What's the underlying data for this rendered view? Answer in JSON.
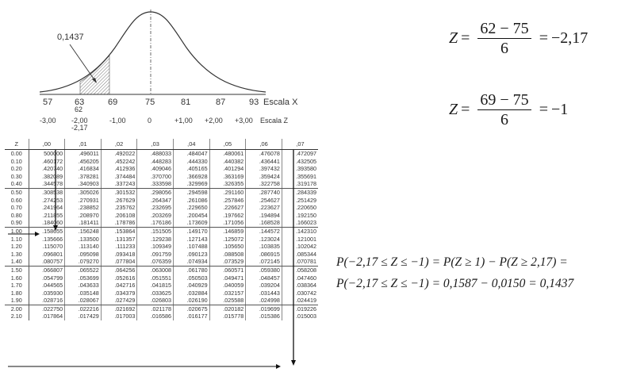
{
  "figure": {
    "area_label": "0,1437",
    "x_ticks": [
      "57",
      "63",
      "69",
      "75",
      "81",
      "87",
      "93"
    ],
    "x_scale_label": "Escala X",
    "extra_x_label": "62",
    "z_ticks": [
      "-3,00",
      "-2,00",
      "-1,00",
      "0",
      "+1,00",
      "+2,00",
      "+3,00"
    ],
    "z_scale_label": "Escala Z",
    "extra_z_label": "-2,17"
  },
  "formula1": {
    "lhs": "Z",
    "numerator": "62 − 75",
    "denominator": "6",
    "result": "−2,17"
  },
  "formula2": {
    "lhs": "Z",
    "numerator": "69 − 75",
    "denominator": "6",
    "result": "−1"
  },
  "probability": {
    "line1": "P(−2,17 ≤ Z ≤ −1) = P(Z ≥ 1) − P(Z ≥ 2,17) =",
    "line2": "P(−2,17 ≤ Z ≤ −1) = 0,1587 − 0,0150 = 0,1437"
  },
  "ztable": {
    "headers": [
      "Z",
      ",00",
      ",01",
      ",02",
      ",03",
      ",04",
      ",05",
      ",06",
      ",07"
    ],
    "rows": [
      [
        "0.00",
        "500000",
        ".496011",
        ".492022",
        ".488033",
        ".484047",
        ".480061",
        ".476078",
        ".472097"
      ],
      [
        "0.10",
        ".460172",
        ".456205",
        ".452242",
        ".448283",
        ".444330",
        ".440382",
        ".436441",
        ".432505"
      ],
      [
        "0.20",
        ".420740",
        ".416834",
        ".412936",
        ".409046",
        ".405165",
        ".401294",
        ".397432",
        ".393580"
      ],
      [
        "0.30",
        ".382089",
        ".378281",
        ".374484",
        ".370700",
        ".366928",
        ".363169",
        ".359424",
        ".355691"
      ],
      [
        "0.40",
        ".344578",
        ".340903",
        ".337243",
        ".333598",
        ".329969",
        ".326355",
        ".322758",
        ".319178"
      ],
      [
        "0.50",
        ".308538",
        ".305026",
        ".301532",
        ".298056",
        ".294598",
        ".291160",
        ".287740",
        ".284339"
      ],
      [
        "0.60",
        ".274253",
        ".270931",
        ".267629",
        ".264347",
        ".261086",
        ".257846",
        ".254627",
        ".251429"
      ],
      [
        "0.70",
        ".241964",
        ".238852",
        ".235762",
        ".232695",
        ".229650",
        ".226627",
        ".223627",
        ".220650"
      ],
      [
        "0.80",
        ".211855",
        ".208970",
        ".206108",
        ".203269",
        ".200454",
        ".197662",
        ".194894",
        ".192150"
      ],
      [
        "0.90",
        ".184060",
        ".181411",
        ".178786",
        ".176186",
        ".173609",
        ".171056",
        ".168528",
        ".166023"
      ],
      [
        "1.00",
        ".158655",
        ".156248",
        ".153864",
        ".151505",
        ".149170",
        ".146859",
        ".144572",
        ".142310"
      ],
      [
        "1.10",
        ".135666",
        ".133500",
        ".131357",
        ".129238",
        ".127143",
        ".125072",
        ".123024",
        ".121001"
      ],
      [
        "1.20",
        ".115070",
        ".113140",
        ".111233",
        ".109349",
        ".107488",
        ".105650",
        ".103835",
        ".102042"
      ],
      [
        "1.30",
        ".096801",
        ".095098",
        ".093418",
        ".091759",
        ".090123",
        ".088508",
        ".086915",
        ".085344"
      ],
      [
        "1.40",
        ".080757",
        ".079270",
        ".077804",
        ".076359",
        ".074934",
        ".073529",
        ".072145",
        ".070781"
      ],
      [
        "1.50",
        ".066807",
        ".065522",
        ".064256",
        ".063008",
        ".061780",
        ".060571",
        ".059380",
        ".058208"
      ],
      [
        "1.60",
        ".054799",
        ".053699",
        ".052616",
        ".051551",
        ".050503",
        ".049471",
        ".048457",
        ".047460"
      ],
      [
        "1.70",
        ".044565",
        ".043633",
        ".042716",
        ".041815",
        ".040929",
        ".040059",
        ".039204",
        ".038364"
      ],
      [
        "1.80",
        ".035930",
        ".035148",
        ".034379",
        ".033625",
        ".032884",
        ".032157",
        ".031443",
        ".030742"
      ],
      [
        "1.90",
        ".028716",
        ".028067",
        ".027429",
        ".026803",
        ".026190",
        ".025588",
        ".024998",
        ".024419"
      ],
      [
        "2.00",
        ".022750",
        ".022216",
        ".021692",
        ".021178",
        ".020675",
        ".020182",
        ".019699",
        ".019226"
      ],
      [
        "2.10",
        ".017864",
        ".017429",
        ".017003",
        ".016586",
        ".016177",
        ".015778",
        ".015386",
        ".015003"
      ]
    ]
  }
}
